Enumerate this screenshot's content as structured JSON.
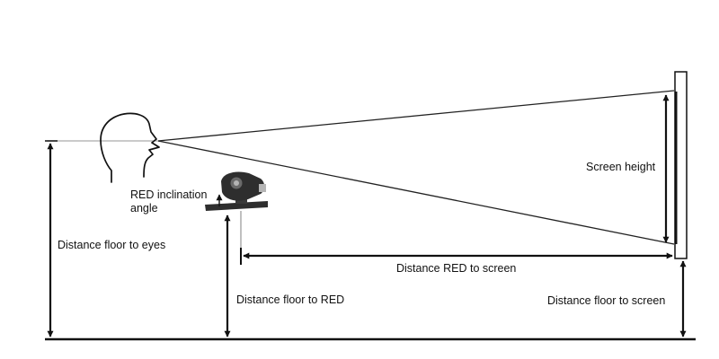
{
  "labels": {
    "red_inclination_line1": "RED inclination",
    "red_inclination_line2": "angle",
    "screen_height": "Screen height",
    "distance_floor_to_eyes": "Distance floor to eyes",
    "distance_red_to_screen": "Distance RED to screen",
    "distance_floor_to_red": "Distance floor to RED",
    "distance_floor_to_screen": "Distance floor to screen"
  },
  "colors": {
    "ink": "#111111",
    "eye_line": "#aaaaaa",
    "device_dark": "#2e2e2e",
    "device_mid": "#6a6a6a",
    "device_light": "#b5b5b5",
    "background": "#ffffff"
  },
  "icons": {
    "head": "head-profile-icon",
    "device": "eye-tracker-device-icon"
  }
}
